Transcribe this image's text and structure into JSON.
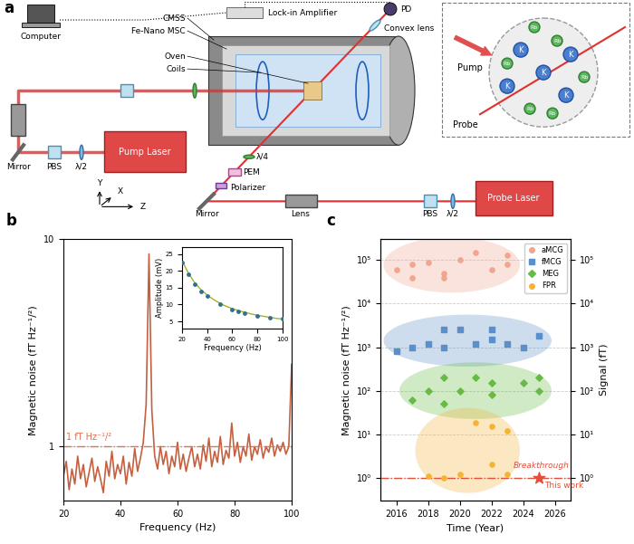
{
  "diagram": {
    "panel_label": "a",
    "computer": "Computer",
    "lockin": "Lock-in Amplifier",
    "pd": "PD",
    "convex_lens": "Convex lens",
    "cmss": "CMSS",
    "msc": "Fe-Nano MSC",
    "oven": "Oven",
    "coils": "Coils",
    "mirror_pump": "Mirror",
    "pbs_pump": "PBS",
    "half_wave_pump": "λ/2",
    "pump_laser": "Pump Laser",
    "quarter_wave": "λ/4",
    "pem": "PEM",
    "polarizer": "Polarizer",
    "lens": "Lens",
    "probe_laser": "Probe Laser",
    "pbs_probe": "PBS",
    "half_wave_probe": "λ/2",
    "mirror_probe": "Mirror",
    "axis_x": "X",
    "axis_y": "Y",
    "axis_z": "Z",
    "inset_pump": "Pump",
    "inset_probe": "Probe",
    "atom_a": "K",
    "atom_b": "Rb"
  },
  "chart_data": [
    {
      "panel_label": "b",
      "type": "line",
      "log": "y",
      "grid": true,
      "color": "#c4603f",
      "x_label": "Frequency (Hz)",
      "y_label": "Magnetic noise (fT Hz⁻¹/²)",
      "xlim": [
        20,
        100
      ],
      "xticks": [
        20,
        40,
        60,
        80,
        100
      ],
      "ylim": [
        0.55,
        10
      ],
      "yticks": [
        1,
        10
      ],
      "x": [
        20,
        21,
        22,
        23,
        24,
        25,
        26,
        27,
        28,
        29,
        30,
        31,
        32,
        33,
        34,
        35,
        36,
        37,
        38,
        39,
        40,
        41,
        42,
        43,
        44,
        45,
        46,
        47,
        48,
        49,
        50,
        51,
        52,
        53,
        54,
        55,
        56,
        57,
        58,
        59,
        60,
        61,
        62,
        63,
        64,
        65,
        66,
        67,
        68,
        69,
        70,
        71,
        72,
        73,
        74,
        75,
        76,
        77,
        78,
        79,
        80,
        81,
        82,
        83,
        84,
        85,
        86,
        87,
        88,
        89,
        90,
        91,
        92,
        93,
        94,
        95,
        96,
        97,
        98,
        99,
        100
      ],
      "values": [
        0.72,
        0.85,
        0.62,
        0.78,
        0.66,
        0.9,
        0.7,
        0.82,
        0.64,
        0.75,
        0.88,
        0.68,
        0.8,
        0.7,
        0.6,
        0.85,
        0.72,
        0.95,
        0.7,
        0.82,
        0.74,
        0.9,
        0.66,
        0.84,
        0.72,
        0.98,
        0.76,
        0.88,
        1.05,
        1.6,
        8.5,
        1.5,
        0.9,
        0.78,
        1.0,
        0.82,
        0.95,
        0.74,
        0.9,
        0.8,
        1.05,
        0.78,
        0.92,
        0.76,
        0.88,
        1.0,
        0.8,
        0.92,
        0.78,
        1.02,
        0.85,
        1.1,
        0.8,
        0.95,
        0.84,
        1.12,
        0.82,
        0.96,
        0.88,
        1.3,
        0.9,
        1.05,
        0.84,
        1.0,
        0.9,
        1.15,
        0.86,
        1.0,
        0.92,
        1.08,
        0.88,
        1.0,
        0.94,
        1.1,
        0.9,
        1.02,
        0.95,
        1.05,
        0.92,
        1.0,
        2.5
      ],
      "reference_value": 1,
      "reference_label": "1 fT Hz⁻¹/²",
      "reference_color": "#e07050"
    },
    {
      "type": "scatter",
      "color": "#2f6f8f",
      "marker": "circle",
      "x_label": "Frequency (Hz)",
      "y_label": "Amplitude (mV)",
      "xlim": [
        20,
        100
      ],
      "xticks": [
        20,
        40,
        60,
        80,
        100
      ],
      "ylim": [
        3,
        27
      ],
      "yticks": [
        5,
        10,
        15,
        20,
        25
      ],
      "x": [
        20,
        25,
        30,
        35,
        40,
        50,
        60,
        65,
        70,
        80,
        90,
        100
      ],
      "values": [
        22.5,
        19,
        16,
        14,
        12.5,
        10,
        8.5,
        8,
        7.5,
        6.5,
        6,
        5.7
      ],
      "fit_color": "#a8b02a",
      "fit_x": [
        20,
        25,
        30,
        35,
        40,
        45,
        50,
        55,
        60,
        65,
        70,
        75,
        80,
        85,
        90,
        95,
        100
      ],
      "fit_values": [
        23.0,
        19.3,
        16.5,
        14.4,
        12.8,
        11.5,
        10.4,
        9.5,
        8.8,
        8.2,
        7.7,
        7.2,
        6.8,
        6.5,
        6.2,
        5.9,
        5.7
      ]
    },
    {
      "panel_label": "c",
      "type": "scatter",
      "log": "y",
      "grid": true,
      "legend": "upper right",
      "x_label": "Time (Year)",
      "y_label": "Magnetic noise (fT Hz⁻¹/²)",
      "y2_label": "Signal (fT)",
      "xlim": [
        2015,
        2027
      ],
      "xticks": [
        2016,
        2018,
        2020,
        2022,
        2024,
        2026
      ],
      "ylim": [
        0.3,
        300000
      ],
      "yticks": [
        {
          "value": 1,
          "label": "10⁰"
        },
        {
          "value": 10,
          "label": "10¹"
        },
        {
          "value": 100,
          "label": "10²"
        },
        {
          "value": 1000,
          "label": "10³"
        },
        {
          "value": 10000,
          "label": "10⁴"
        },
        {
          "value": 100000,
          "label": "10⁵"
        }
      ],
      "y2lim": [
        0.3,
        300000
      ],
      "y2ticks": [
        {
          "value": 1,
          "label": "10⁰"
        },
        {
          "value": 10,
          "label": "10¹"
        },
        {
          "value": 100,
          "label": "10²"
        },
        {
          "value": 1000,
          "label": "10³"
        },
        {
          "value": 10000,
          "label": "10⁴"
        },
        {
          "value": 100000,
          "label": "10⁵"
        }
      ],
      "series": [
        {
          "name": "aMCG",
          "color": "#f0a58f",
          "marker": "circle",
          "x": [
            2016,
            2017,
            2017,
            2018,
            2019,
            2019,
            2020,
            2021,
            2022,
            2023,
            2023
          ],
          "values": [
            60000,
            40000,
            80000,
            90000,
            40000,
            50000,
            100000,
            150000,
            60000,
            130000,
            80000
          ]
        },
        {
          "name": "fMCG",
          "color": "#5b8fc9",
          "marker": "square",
          "x": [
            2016,
            2017,
            2018,
            2019,
            2019,
            2020,
            2021,
            2022,
            2022,
            2023,
            2024,
            2025
          ],
          "values": [
            800,
            1000,
            1200,
            2500,
            1000,
            2500,
            1200,
            2500,
            1500,
            1200,
            1000,
            1800
          ]
        },
        {
          "name": "MEG",
          "color": "#66bb44",
          "marker": "diamond",
          "x": [
            2017,
            2018,
            2019,
            2019,
            2020,
            2021,
            2022,
            2022,
            2024,
            2025,
            2025
          ],
          "values": [
            60,
            100,
            200,
            50,
            100,
            200,
            80,
            150,
            150,
            200,
            100
          ]
        },
        {
          "name": "FPR",
          "color": "#f5b335",
          "marker": "circle",
          "x": [
            2018,
            2019,
            2020,
            2021,
            2022,
            2022,
            2023,
            2023
          ],
          "values": [
            1.1,
            1.0,
            1.2,
            18,
            15,
            2,
            12,
            1.2
          ]
        }
      ],
      "highlight_x": 2025,
      "highlight_value": 1,
      "highlight_color": "#e0503a",
      "highlight_marker": "star",
      "highlight_label": "This work",
      "annotation": "Breakthrough",
      "reference_value": 1,
      "reference_color": "#e0503a"
    }
  ]
}
